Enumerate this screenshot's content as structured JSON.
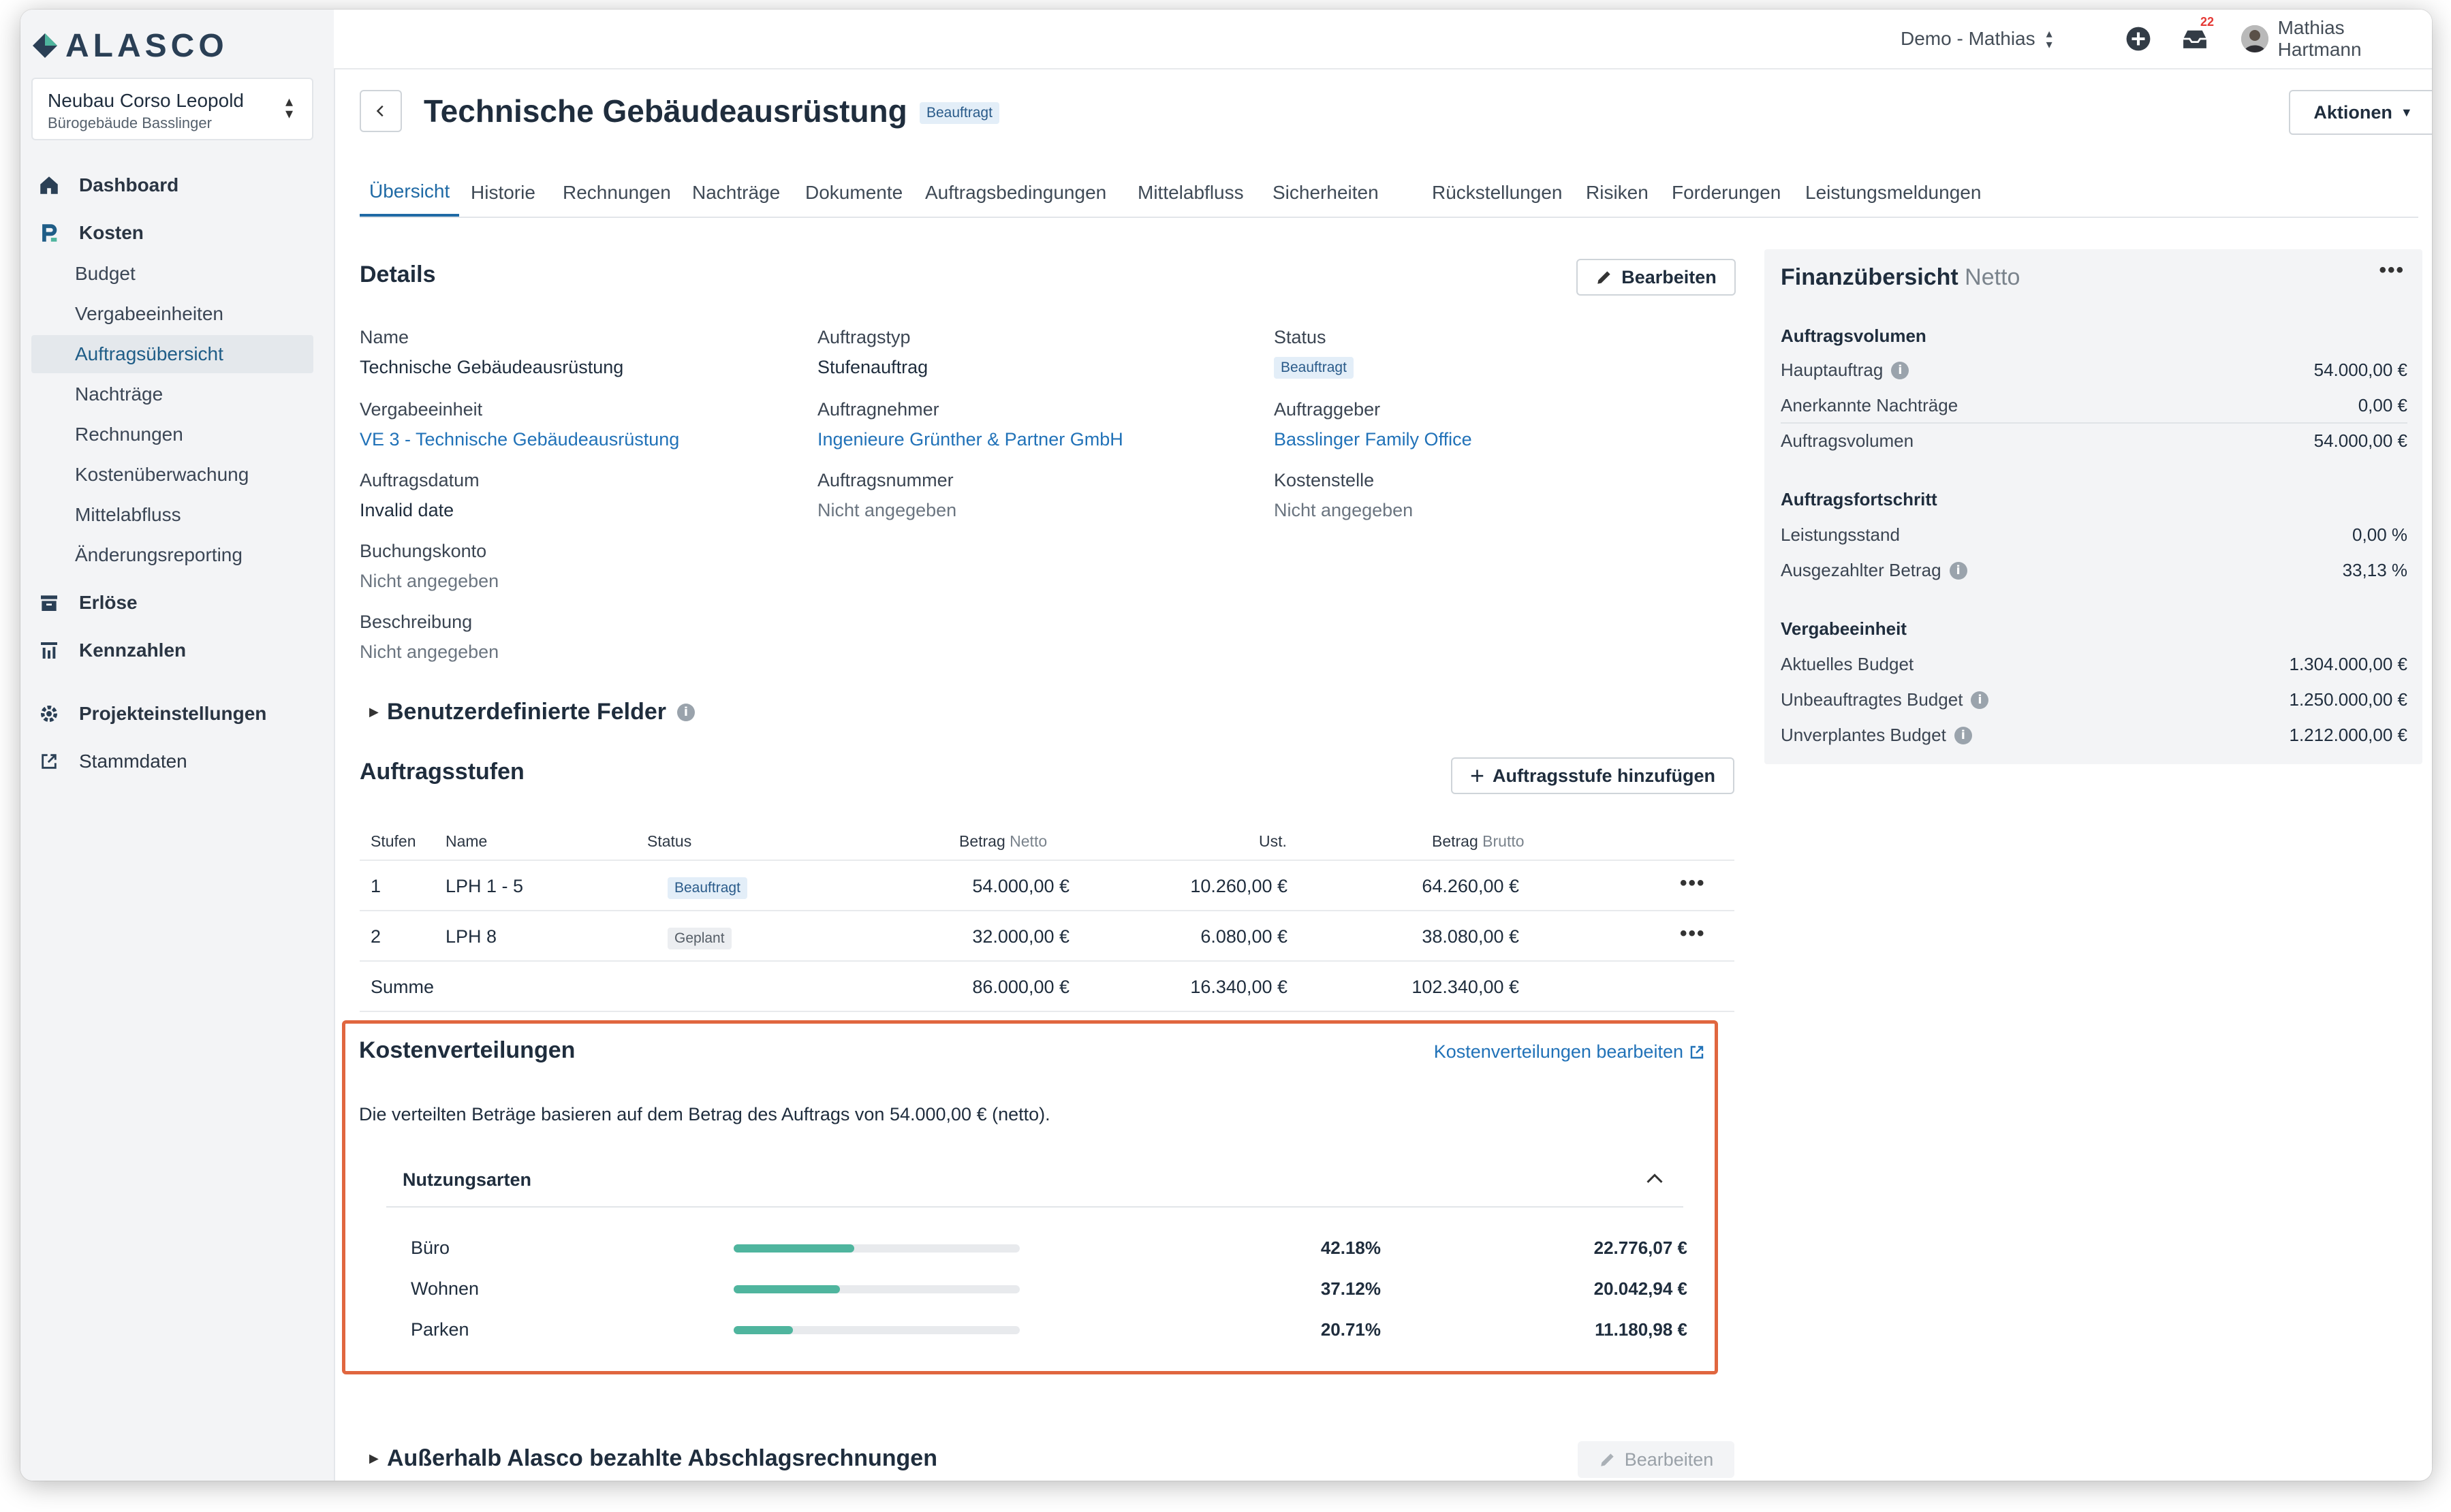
{
  "app": {
    "logo": "ALASCO"
  },
  "project": {
    "name": "Neubau Corso Leopold",
    "sub": "Bürogebäude Basslinger"
  },
  "sidebar": {
    "items": [
      {
        "label": "Dashboard",
        "icon": "home-icon"
      },
      {
        "label": "Kosten",
        "icon": "cost-icon"
      },
      {
        "label": "Budget"
      },
      {
        "label": "Vergabeeinheiten"
      },
      {
        "label": "Auftragsübersicht"
      },
      {
        "label": "Nachträge"
      },
      {
        "label": "Rechnungen"
      },
      {
        "label": "Kostenüberwachung"
      },
      {
        "label": "Mittelabfluss"
      },
      {
        "label": "Änderungsreporting"
      },
      {
        "label": "Erlöse",
        "icon": "revenue-icon"
      },
      {
        "label": "Kennzahlen",
        "icon": "metrics-icon"
      },
      {
        "label": "Projekteinstellungen",
        "icon": "gear-icon"
      },
      {
        "label": "Stammdaten",
        "icon": "external-link-icon"
      }
    ]
  },
  "topbar": {
    "workspace": "Demo - Mathias",
    "notifications": "22",
    "user": "Mathias Hartmann"
  },
  "header": {
    "title": "Technische Gebäudeausrüstung",
    "status": "Beauftragt",
    "actions_label": "Aktionen"
  },
  "tabs": [
    "Übersicht",
    "Historie",
    "Rechnungen",
    "Nachträge",
    "Dokumente",
    "Auftragsbedingungen",
    "Mittelabfluss",
    "Sicherheiten",
    "Rückstellungen",
    "Risiken",
    "Forderungen",
    "Leistungsmeldungen"
  ],
  "details": {
    "title": "Details",
    "edit_label": "Bearbeiten",
    "fields": {
      "name_l": "Name",
      "name_v": "Technische Gebäudeausrüstung",
      "type_l": "Auftragstyp",
      "type_v": "Stufenauftrag",
      "status_l": "Status",
      "status_v": "Beauftragt",
      "unit_l": "Vergabeeinheit",
      "unit_v": "VE 3 - Technische Gebäudeausrüstung",
      "contractor_l": "Auftragnehmer",
      "contractor_v": "Ingenieure Grünther & Partner GmbH",
      "client_l": "Auftraggeber",
      "client_v": "Basslinger Family Office",
      "date_l": "Auftragsdatum",
      "date_v": "Invalid date",
      "number_l": "Auftragsnummer",
      "number_v": "Nicht angegeben",
      "cost_l": "Kostenstelle",
      "cost_v": "Nicht angegeben",
      "account_l": "Buchungskonto",
      "account_v": "Nicht angegeben",
      "desc_l": "Beschreibung",
      "desc_v": "Nicht angegeben"
    }
  },
  "custom_fields": {
    "title": "Benutzerdefinierte Felder"
  },
  "stages": {
    "title": "Auftragsstufen",
    "add_label": "Auftragsstufe hinzufügen",
    "headers": {
      "stage": "Stufen",
      "name": "Name",
      "status": "Status",
      "net": "Betrag",
      "net_suffix": "Netto",
      "vat": "Ust.",
      "gross": "Betrag",
      "gross_suffix": "Brutto"
    },
    "rows": [
      {
        "stage": "1",
        "name": "LPH 1 - 5",
        "status": "Beauftragt",
        "net": "54.000,00 €",
        "vat": "10.260,00 €",
        "gross": "64.260,00 €"
      },
      {
        "stage": "2",
        "name": "LPH 8",
        "status": "Geplant",
        "net": "32.000,00 €",
        "vat": "6.080,00 €",
        "gross": "38.080,00 €"
      }
    ],
    "sum": {
      "label": "Summe",
      "net": "86.000,00 €",
      "vat": "16.340,00 €",
      "gross": "102.340,00 €"
    }
  },
  "cost_distribution": {
    "title": "Kostenverteilungen",
    "edit_link": "Kostenverteilungen bearbeiten",
    "note": "Die verteilten Beträge basieren auf dem Betrag des Auftrags von 54.000,00 € (netto).",
    "group": "Nutzungsarten",
    "rows": [
      {
        "label": "Büro",
        "percent": "42.18%",
        "fraction": 0.4218,
        "amount": "22.776,07 €"
      },
      {
        "label": "Wohnen",
        "percent": "37.12%",
        "fraction": 0.3712,
        "amount": "20.042,94 €"
      },
      {
        "label": "Parken",
        "percent": "20.71%",
        "fraction": 0.2071,
        "amount": "11.180,98 €"
      }
    ]
  },
  "external_invoices": {
    "title": "Außerhalb Alasco bezahlte Abschlagsrechnungen",
    "edit_label": "Bearbeiten"
  },
  "finance": {
    "title": "Finanzübersicht",
    "title_suffix": "Netto",
    "groups": {
      "volume": "Auftragsvolumen",
      "progress": "Auftragsfortschritt",
      "unit": "Vergabeeinheit"
    },
    "rows": {
      "main_l": "Hauptauftrag",
      "main_v": "54.000,00 €",
      "recog_l": "Anerkannte Nachträge",
      "recog_v": "0,00 €",
      "vol_l": "Auftragsvolumen",
      "vol_v": "54.000,00 €",
      "perf_l": "Leistungsstand",
      "perf_v": "0,00 %",
      "paid_l": "Ausgezahlter Betrag",
      "paid_v": "33,13 %",
      "budget_l": "Aktuelles Budget",
      "budget_v": "1.304.000,00 €",
      "unassigned_l": "Unbeauftragtes Budget",
      "unassigned_v": "1.250.000,00 €",
      "unplanned_l": "Unverplantes Budget",
      "unplanned_v": "1.212.000,00 €"
    }
  },
  "colors": {
    "accent": "#1f6aa5",
    "highlight": "#e0663f",
    "bar": "#4fb59e"
  }
}
